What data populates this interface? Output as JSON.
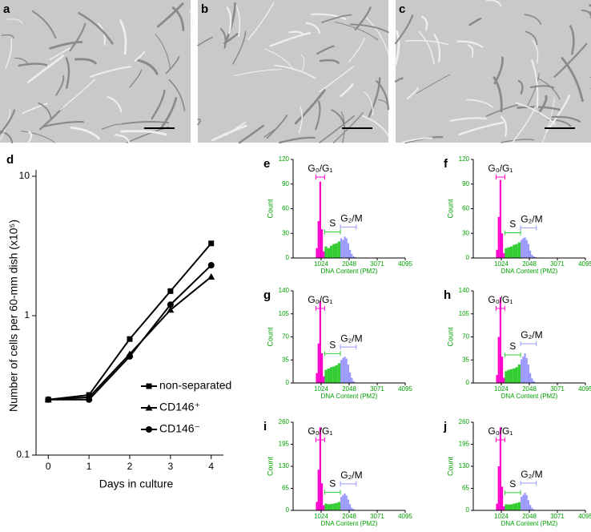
{
  "micrographs": [
    {
      "label": "a"
    },
    {
      "label": "b"
    },
    {
      "label": "c"
    }
  ],
  "chart_data": [
    {
      "type": "line",
      "panel_label": "d",
      "xlabel": "Days in culture",
      "ylabel": "Number of cells per 60-mm dish (x10⁵)",
      "x": [
        0,
        1,
        2,
        3,
        4
      ],
      "xlim": [
        -0.3,
        4.3
      ],
      "xticks": [
        0,
        1,
        2,
        3,
        4
      ],
      "ylim": [
        0.1,
        10
      ],
      "yticks": [
        0.1,
        1,
        10
      ],
      "log_y": true,
      "legend": "lower right",
      "series": [
        {
          "name": "non-separated",
          "marker": "square",
          "color": "#000000",
          "values": [
            0.25,
            0.27,
            0.68,
            1.5,
            3.3
          ]
        },
        {
          "name": "CD146⁺",
          "marker": "triangle",
          "color": "#000000",
          "values": [
            0.25,
            0.26,
            0.53,
            1.1,
            1.9
          ]
        },
        {
          "name": "CD146⁻",
          "marker": "circle",
          "color": "#000000",
          "values": [
            0.25,
            0.25,
            0.51,
            1.2,
            2.3
          ]
        }
      ]
    },
    {
      "type": "histogram",
      "panel_label": "e",
      "xlabel": "DNA Content (PM2)",
      "ylabel": "Count",
      "xlim": [
        0,
        4095
      ],
      "xticks": [
        1024,
        2048,
        3071,
        4095
      ],
      "ylim": [
        0,
        120
      ],
      "yticks": [
        0,
        30,
        60,
        90,
        120
      ],
      "annotations": [
        "G₀/G₁",
        "S",
        "G₂/M"
      ],
      "series": [
        {
          "color": "#ff00cc",
          "bins": [
            832,
            896,
            960,
            1024,
            1088,
            1152
          ],
          "counts": [
            12,
            45,
            93,
            35,
            8
          ]
        },
        {
          "color": "#33cc33",
          "bins": [
            1152,
            1248,
            1344,
            1440,
            1536,
            1632,
            1728
          ],
          "counts": [
            14,
            12,
            15,
            17,
            18,
            20
          ]
        },
        {
          "color": "#9999ff",
          "bins": [
            1728,
            1792,
            1856,
            1920,
            1984,
            2048,
            2112,
            2176,
            2240,
            2304
          ],
          "counts": [
            24,
            22,
            26,
            24,
            18,
            10,
            5,
            2,
            1
          ]
        }
      ]
    },
    {
      "type": "histogram",
      "panel_label": "f",
      "xlabel": "DNA Content (PM2)",
      "ylabel": "Count",
      "xlim": [
        0,
        4095
      ],
      "xticks": [
        1024,
        2048,
        3071,
        4095
      ],
      "ylim": [
        0,
        120
      ],
      "yticks": [
        0,
        30,
        60,
        90,
        120
      ],
      "annotations": [
        "G₀/G₁",
        "S",
        "G₂/M"
      ],
      "series": [
        {
          "color": "#ff00cc",
          "bins": [
            832,
            896,
            960,
            1024,
            1088,
            1152
          ],
          "counts": [
            10,
            50,
            95,
            30,
            6
          ]
        },
        {
          "color": "#33cc33",
          "bins": [
            1152,
            1248,
            1344,
            1440,
            1536,
            1632,
            1728
          ],
          "counts": [
            12,
            13,
            14,
            16,
            17,
            19
          ]
        },
        {
          "color": "#9999ff",
          "bins": [
            1728,
            1792,
            1856,
            1920,
            1984,
            2048,
            2112,
            2176,
            2240,
            2304
          ],
          "counts": [
            22,
            24,
            25,
            22,
            17,
            9,
            4,
            2,
            1
          ]
        }
      ]
    },
    {
      "type": "histogram",
      "panel_label": "g",
      "xlabel": "DNA Content (PM2)",
      "ylabel": "Count",
      "xlim": [
        0,
        4095
      ],
      "xticks": [
        1024,
        2048,
        3071,
        4095
      ],
      "ylim": [
        0,
        140
      ],
      "yticks": [
        0,
        35,
        70,
        105,
        140
      ],
      "annotations": [
        "G₀/G₁",
        "S",
        "G₂/M"
      ],
      "series": [
        {
          "color": "#ff00cc",
          "bins": [
            832,
            896,
            960,
            1024,
            1088,
            1152
          ],
          "counts": [
            15,
            60,
            125,
            45,
            10
          ]
        },
        {
          "color": "#33cc33",
          "bins": [
            1152,
            1248,
            1344,
            1440,
            1536,
            1632,
            1728
          ],
          "counts": [
            20,
            22,
            24,
            25,
            27,
            30
          ]
        },
        {
          "color": "#9999ff",
          "bins": [
            1728,
            1792,
            1856,
            1920,
            1984,
            2048,
            2112,
            2176,
            2240,
            2304
          ],
          "counts": [
            35,
            38,
            40,
            37,
            28,
            16,
            8,
            3,
            1
          ]
        }
      ]
    },
    {
      "type": "histogram",
      "panel_label": "h",
      "xlabel": "DNA Content (PM2)",
      "ylabel": "Count",
      "xlim": [
        0,
        4095
      ],
      "xticks": [
        1024,
        2048,
        3071,
        4095
      ],
      "ylim": [
        0,
        140
      ],
      "yticks": [
        0,
        35,
        70,
        105,
        140
      ],
      "annotations": [
        "G₀/G₁",
        "S",
        "G₂/M"
      ],
      "series": [
        {
          "color": "#ff00cc",
          "bins": [
            832,
            896,
            960,
            1024,
            1088,
            1152
          ],
          "counts": [
            12,
            70,
            130,
            40,
            8
          ]
        },
        {
          "color": "#33cc33",
          "bins": [
            1152,
            1248,
            1344,
            1440,
            1536,
            1632,
            1728
          ],
          "counts": [
            18,
            20,
            21,
            22,
            24,
            28
          ]
        },
        {
          "color": "#9999ff",
          "bins": [
            1728,
            1792,
            1856,
            1920,
            1984,
            2048,
            2112,
            2176,
            2240,
            2304
          ],
          "counts": [
            36,
            40,
            45,
            38,
            28,
            15,
            7,
            3,
            1
          ]
        }
      ]
    },
    {
      "type": "histogram",
      "panel_label": "i",
      "xlabel": "DNA Content (PM2)",
      "ylabel": "Count",
      "xlim": [
        0,
        4095
      ],
      "xticks": [
        1024,
        2048,
        3071,
        4095
      ],
      "ylim": [
        0,
        260
      ],
      "yticks": [
        0,
        65,
        130,
        195,
        260
      ],
      "annotations": [
        "G₀/G₁",
        "S",
        "G₂/M"
      ],
      "series": [
        {
          "color": "#ff00cc",
          "bins": [
            832,
            896,
            960,
            1024,
            1088,
            1152
          ],
          "counts": [
            25,
            120,
            245,
            80,
            15
          ]
        },
        {
          "color": "#33cc33",
          "bins": [
            1152,
            1248,
            1344,
            1440,
            1536,
            1632,
            1728
          ],
          "counts": [
            20,
            18,
            19,
            20,
            22,
            25
          ]
        },
        {
          "color": "#9999ff",
          "bins": [
            1728,
            1792,
            1856,
            1920,
            1984,
            2048,
            2112,
            2176,
            2240,
            2304
          ],
          "counts": [
            40,
            45,
            50,
            44,
            32,
            18,
            8,
            4,
            1
          ]
        }
      ]
    },
    {
      "type": "histogram",
      "panel_label": "j",
      "xlabel": "DNA Content (PM2)",
      "ylabel": "Count",
      "xlim": [
        0,
        4095
      ],
      "xticks": [
        1024,
        2048,
        3071,
        4095
      ],
      "ylim": [
        0,
        260
      ],
      "yticks": [
        0,
        65,
        130,
        195,
        260
      ],
      "annotations": [
        "G₀/G₁",
        "S",
        "G₂/M"
      ],
      "series": [
        {
          "color": "#ff00cc",
          "bins": [
            832,
            896,
            960,
            1024,
            1088,
            1152
          ],
          "counts": [
            20,
            130,
            245,
            70,
            12
          ]
        },
        {
          "color": "#33cc33",
          "bins": [
            1152,
            1248,
            1344,
            1440,
            1536,
            1632,
            1728
          ],
          "counts": [
            18,
            17,
            18,
            20,
            22,
            24
          ]
        },
        {
          "color": "#9999ff",
          "bins": [
            1728,
            1792,
            1856,
            1920,
            1984,
            2048,
            2112,
            2176,
            2240,
            2304
          ],
          "counts": [
            40,
            46,
            52,
            45,
            30,
            16,
            8,
            3,
            1
          ]
        }
      ]
    }
  ]
}
